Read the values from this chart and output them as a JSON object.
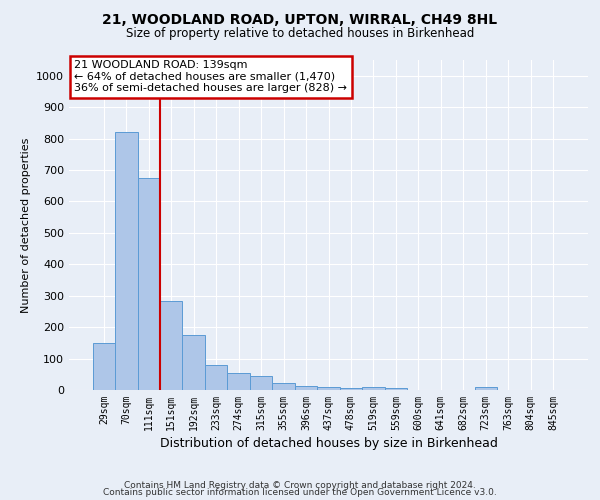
{
  "title": "21, WOODLAND ROAD, UPTON, WIRRAL, CH49 8HL",
  "subtitle": "Size of property relative to detached houses in Birkenhead",
  "xlabel": "Distribution of detached houses by size in Birkenhead",
  "ylabel": "Number of detached properties",
  "categories": [
    "29sqm",
    "70sqm",
    "111sqm",
    "151sqm",
    "192sqm",
    "233sqm",
    "274sqm",
    "315sqm",
    "355sqm",
    "396sqm",
    "437sqm",
    "478sqm",
    "519sqm",
    "559sqm",
    "600sqm",
    "641sqm",
    "682sqm",
    "723sqm",
    "763sqm",
    "804sqm",
    "845sqm"
  ],
  "values": [
    148,
    820,
    675,
    283,
    175,
    78,
    55,
    43,
    22,
    12,
    8,
    5,
    10,
    5,
    0,
    0,
    0,
    10,
    0,
    0,
    0
  ],
  "bar_color": "#aec6e8",
  "bar_edge_color": "#5b9bd5",
  "vline_x": 2.5,
  "vline_color": "#cc0000",
  "annotation_line1": "21 WOODLAND ROAD: 139sqm",
  "annotation_line2": "← 64% of detached houses are smaller (1,470)",
  "annotation_line3": "36% of semi-detached houses are larger (828) →",
  "annotation_box_color": "#cc0000",
  "ylim": [
    0,
    1050
  ],
  "yticks": [
    0,
    100,
    200,
    300,
    400,
    500,
    600,
    700,
    800,
    900,
    1000
  ],
  "footer1": "Contains HM Land Registry data © Crown copyright and database right 2024.",
  "footer2": "Contains public sector information licensed under the Open Government Licence v3.0.",
  "bg_color": "#e8eef7",
  "plot_bg_color": "#e8eef7"
}
